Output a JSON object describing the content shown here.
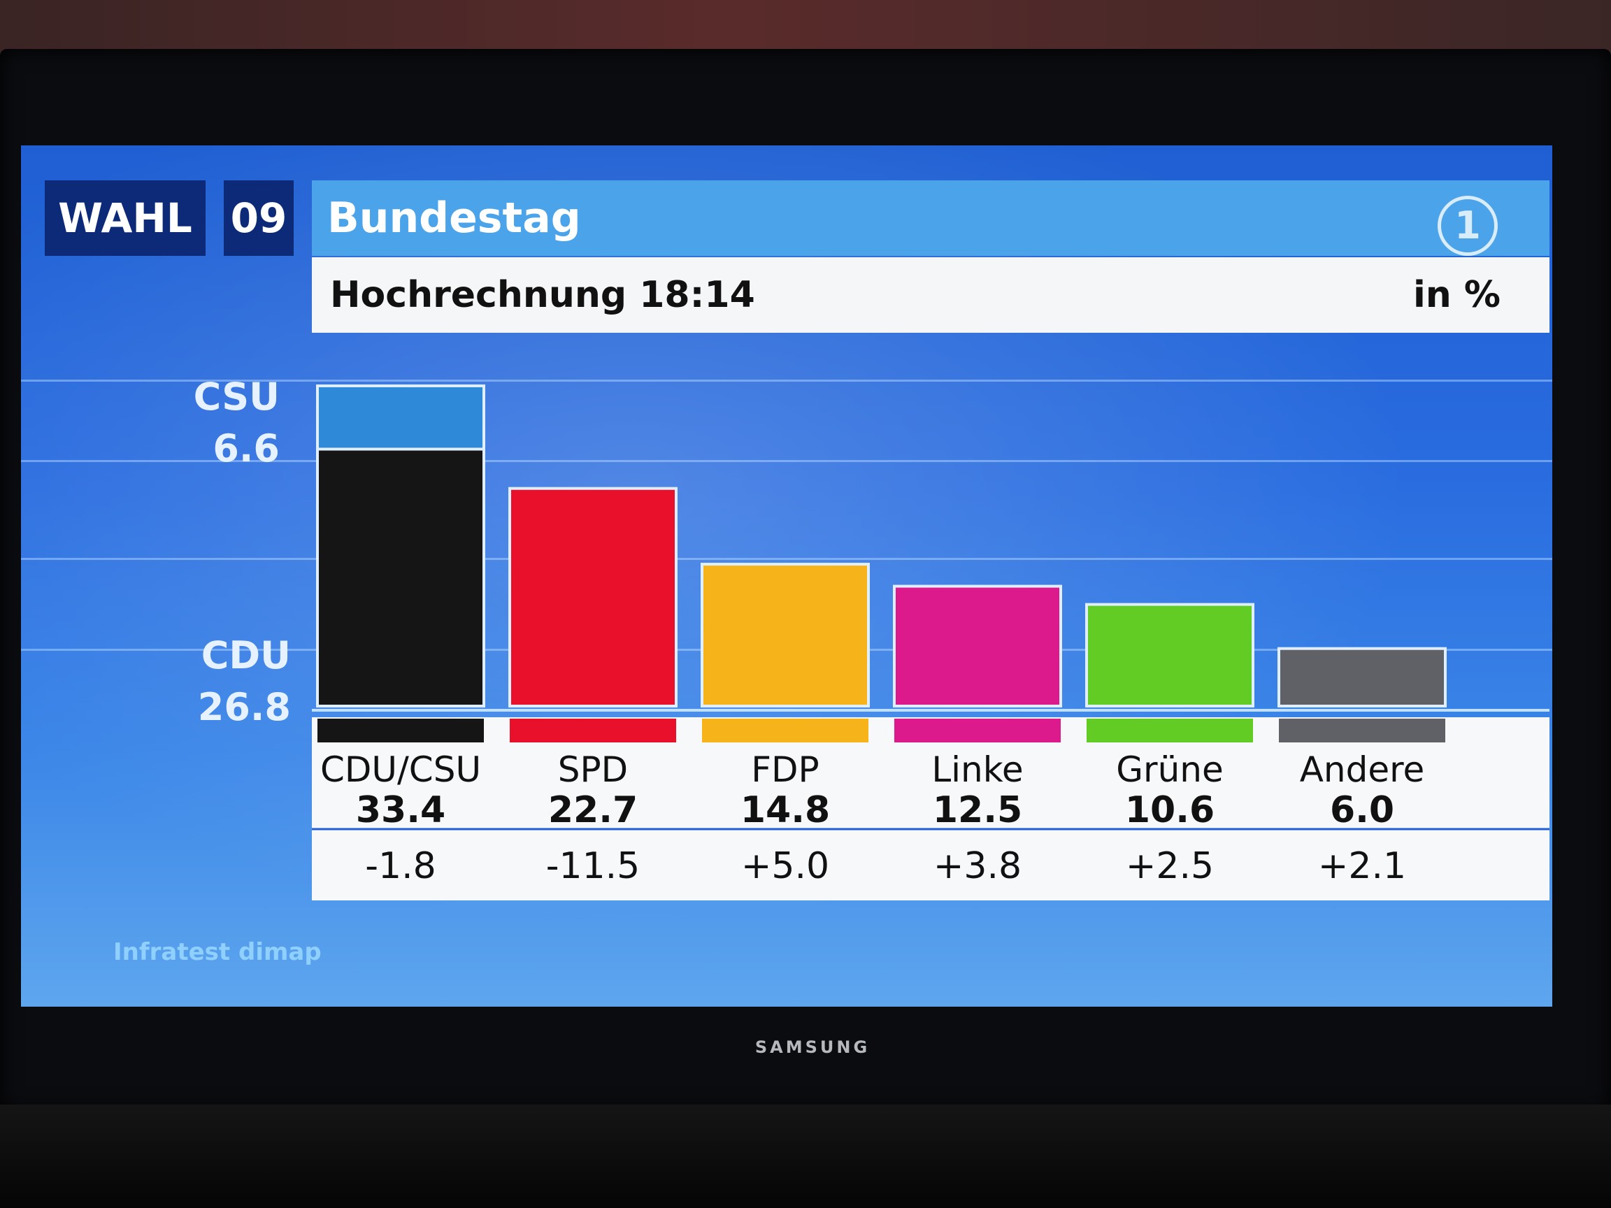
{
  "header": {
    "tag_left": "WAHL",
    "tag_year": "09",
    "title": "Bundestag",
    "logo": "1",
    "subtitle": "Hochrechnung 18:14",
    "unit": "in %"
  },
  "side_labels": {
    "csu_name": "CSU",
    "csu_value": "6.6",
    "cdu_name": "CDU",
    "cdu_value": "26.8"
  },
  "tv": {
    "brand": "SAMSUNG"
  },
  "source": "Infratest dimap",
  "chart_data": {
    "type": "bar",
    "ylim": [
      0,
      35
    ],
    "categories": [
      "CDU/CSU",
      "SPD",
      "FDP",
      "Linke",
      "Grüne",
      "Andere"
    ],
    "values": [
      33.4,
      22.7,
      14.8,
      12.5,
      10.6,
      6.0
    ],
    "value_labels": [
      "33.4",
      "22.7",
      "14.8",
      "12.5",
      "10.6",
      "6.0"
    ],
    "changes": [
      "-1.8",
      "-11.5",
      "+5.0",
      "+3.8",
      "+2.5",
      "+2.1"
    ],
    "colors": [
      "#151515",
      "#e8102a",
      "#f6b41a",
      "#dc1a8c",
      "#63cc24",
      "#5f6166"
    ],
    "stack": {
      "CDU": 26.8,
      "CSU": 6.6,
      "csu_color": "#2e8ad8"
    }
  }
}
